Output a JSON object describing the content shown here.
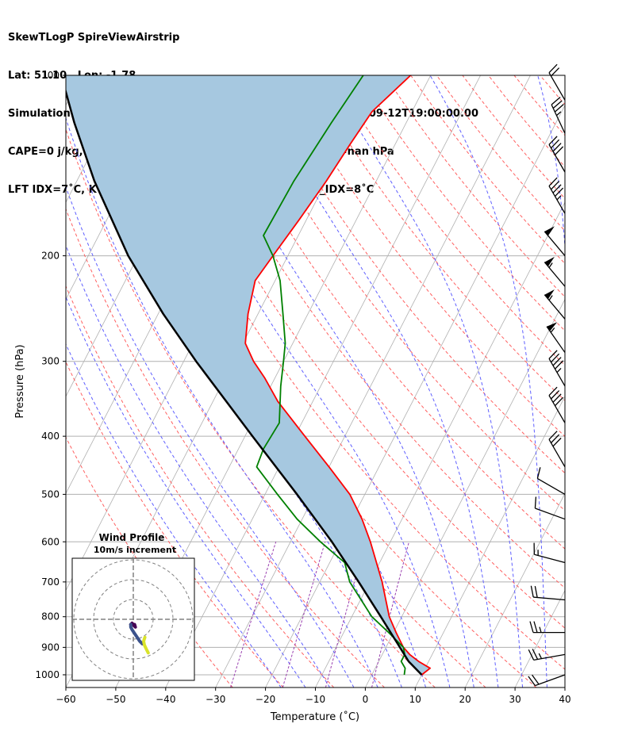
{
  "header": {
    "line1": "SkewTLogP SpireViewAirstrip",
    "line2": "Lat: 51.10   Lon: -1.78",
    "line3": "Simulation start time: 2024-09-12_00:00:00, Valid time: 2024-09-12T19:00:00.00",
    "line4": "CAPE=0 j/kg, CIN=0 j/kg, LCL=950 hPa, LFC=nan hPa, EQ=nan hPa",
    "line5": "LFT IDX=7˚C, K IDX=11˚C, TOTAL TOTS=44˚C, SHWTR_IDX=8˚C"
  },
  "chart_data": [
    {
      "type": "line",
      "subtype": "skew-t log-p",
      "xlabel": "Temperature (˚C)",
      "ylabel": "Pressure (hPa)",
      "xlim": [
        -60,
        40
      ],
      "ylim": [
        1050,
        100
      ],
      "y_scale": "log",
      "x_ticks": [
        -60,
        -50,
        -40,
        -30,
        -20,
        -10,
        0,
        10,
        20,
        30,
        40
      ],
      "x_tick_labels": [
        "−60",
        "−50",
        "−40",
        "−30",
        "−20",
        "−10",
        "0",
        "10",
        "20",
        "30",
        "40"
      ],
      "y_ticks": [
        100,
        200,
        300,
        400,
        500,
        600,
        700,
        800,
        900,
        1000
      ],
      "y_tick_labels": [
        "100",
        "200",
        "300",
        "400",
        "500",
        "600",
        "700",
        "800",
        "900",
        "1000"
      ],
      "grid": true,
      "series": [
        {
          "color": "#ff0000",
          "pressure": [
            1000,
            975,
            950,
            925,
            900,
            850,
            800,
            700,
            600,
            550,
            500,
            450,
            400,
            350,
            320,
            300,
            280,
            250,
            220,
            200,
            175,
            150,
            130,
            115,
            100
          ],
          "temperature": [
            10,
            11,
            8,
            5.5,
            3.5,
            0.5,
            -2.5,
            -7.5,
            -14,
            -18,
            -23,
            -30,
            -38,
            -47,
            -52,
            -56,
            -59.5,
            -62,
            -64,
            -63,
            -61.5,
            -60,
            -59,
            -58,
            -54
          ]
        },
        {
          "color": "#008000",
          "pressure": [
            1000,
            975,
            950,
            925,
            900,
            850,
            800,
            700,
            650,
            600,
            550,
            500,
            450,
            420,
            380,
            330,
            300,
            280,
            250,
            220,
            200,
            185,
            150,
            120,
            100
          ],
          "temperature": [
            6.5,
            6,
            4.5,
            4.5,
            3.5,
            -1,
            -6,
            -14,
            -17,
            -24,
            -31,
            -37.5,
            -44.5,
            -45,
            -44.5,
            -48,
            -50,
            -51.5,
            -55,
            -59,
            -63,
            -67,
            -66.5,
            -65,
            -63.5
          ]
        },
        {
          "color": "#000000",
          "pressure": [
            1000,
            950,
            900,
            850,
            800,
            700,
            600,
            500,
            400,
            300,
            250,
            200,
            150,
            120,
            100
          ],
          "temperature": [
            10,
            6,
            2.8,
            -0.6,
            -4.2,
            -12.2,
            -21.7,
            -33.6,
            -48.5,
            -67.5,
            -79,
            -92,
            -106.5,
            -116.5,
            -124
          ]
        }
      ],
      "wind_barbs": [
        {
          "pressure": 1000,
          "speed_kt": 20,
          "direction_deg": 250
        },
        {
          "pressure": 925,
          "speed_kt": 25,
          "direction_deg": 260
        },
        {
          "pressure": 850,
          "speed_kt": 25,
          "direction_deg": 270
        },
        {
          "pressure": 750,
          "speed_kt": 20,
          "direction_deg": 275
        },
        {
          "pressure": 650,
          "speed_kt": 15,
          "direction_deg": 285
        },
        {
          "pressure": 550,
          "speed_kt": 10,
          "direction_deg": 290
        },
        {
          "pressure": 500,
          "speed_kt": 10,
          "direction_deg": 300
        },
        {
          "pressure": 450,
          "speed_kt": 30,
          "direction_deg": 330
        },
        {
          "pressure": 380,
          "speed_kt": 40,
          "direction_deg": 330
        },
        {
          "pressure": 330,
          "speed_kt": 45,
          "direction_deg": 330
        },
        {
          "pressure": 290,
          "speed_kt": 55,
          "direction_deg": 325
        },
        {
          "pressure": 255,
          "speed_kt": 55,
          "direction_deg": 320
        },
        {
          "pressure": 225,
          "speed_kt": 55,
          "direction_deg": 320
        },
        {
          "pressure": 200,
          "speed_kt": 50,
          "direction_deg": 320
        },
        {
          "pressure": 170,
          "speed_kt": 45,
          "direction_deg": 330
        },
        {
          "pressure": 145,
          "speed_kt": 40,
          "direction_deg": 330
        },
        {
          "pressure": 125,
          "speed_kt": 35,
          "direction_deg": 335
        },
        {
          "pressure": 110,
          "speed_kt": 20,
          "direction_deg": 330
        }
      ],
      "colors": {
        "temperature": "#ff0000",
        "dewpoint": "#008000",
        "parcel": "#000000",
        "cape_fill": "#a6c8e0",
        "dry_adiabat": "#ff5f5f",
        "moist_adiabat": "#5f5fff",
        "mixing_ratio": "#9a3fb0",
        "isotherm": "#b0b0b0"
      }
    },
    {
      "type": "line",
      "subtype": "hodograph",
      "title": "Wind Profile",
      "subtitle": "10m/s increment",
      "ring_step_ms": 10,
      "rings": 3,
      "series": [
        {
          "color": "#440154",
          "u": [
            0.5,
            0.8,
            0.3,
            -0.5,
            -1.0
          ]
        },
        {
          "color": "#3b528b",
          "u": [
            -1.0,
            -1.0,
            -0.5,
            0.5,
            1.5,
            2.5,
            3.5
          ]
        },
        {
          "color": "#d9e32a",
          "u": [
            4.5,
            4.0,
            4.3,
            5.0,
            5.8
          ]
        }
      ]
    }
  ]
}
